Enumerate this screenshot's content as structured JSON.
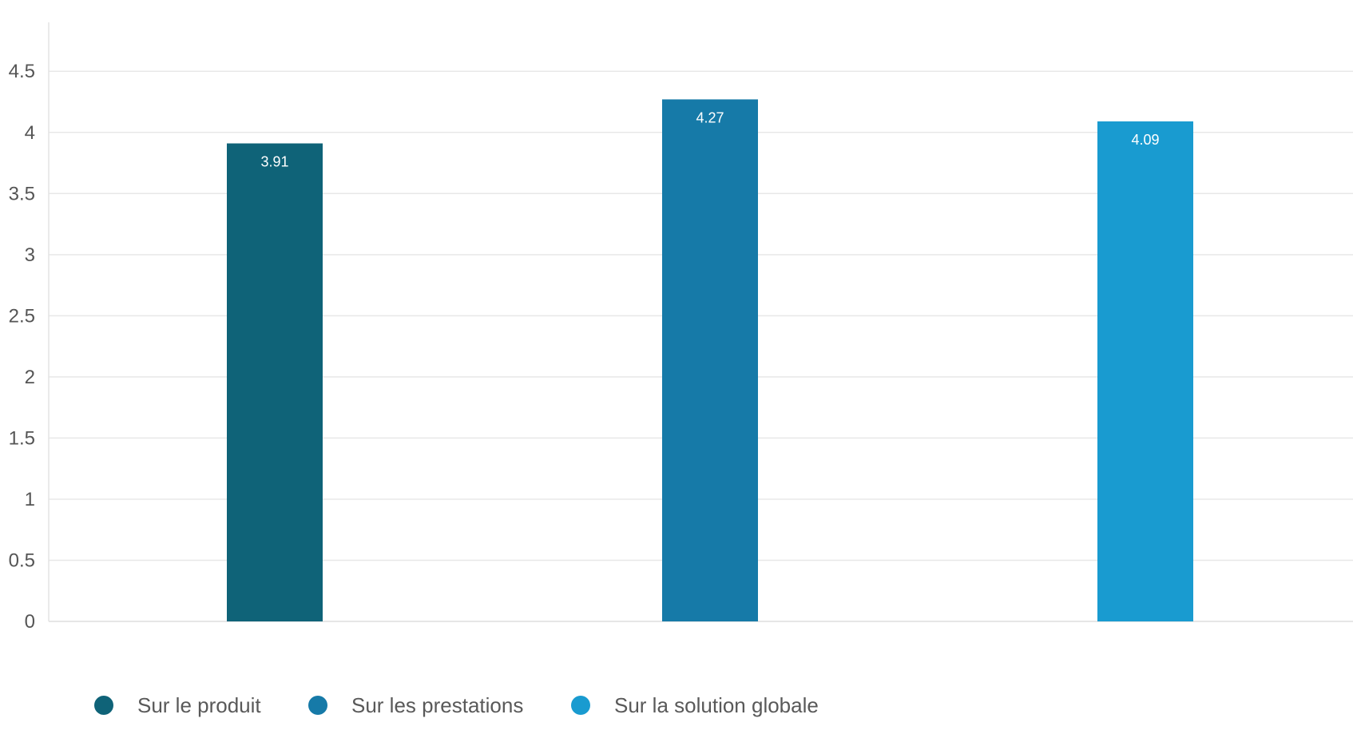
{
  "chart_data": {
    "type": "bar",
    "title": "",
    "xlabel": "",
    "ylabel": "",
    "ylim": [
      0,
      4.9
    ],
    "yticks": [
      0,
      0.5,
      1,
      1.5,
      2,
      2.5,
      3,
      3.5,
      4,
      4.5
    ],
    "ytick_labels": [
      "0",
      "0.5",
      "1",
      "1.5",
      "2",
      "2.5",
      "3",
      "3.5",
      "4",
      "4.5"
    ],
    "grid": true,
    "legend_position": "bottom-left",
    "series": [
      {
        "name": "Sur le produit",
        "value": 3.91,
        "label": "3.91",
        "color": "#0f6378"
      },
      {
        "name": "Sur les prestations",
        "value": 4.27,
        "label": "4.27",
        "color": "#167aa8"
      },
      {
        "name": "Sur la solution globale",
        "value": 4.09,
        "label": "4.09",
        "color": "#199bd0"
      }
    ]
  }
}
